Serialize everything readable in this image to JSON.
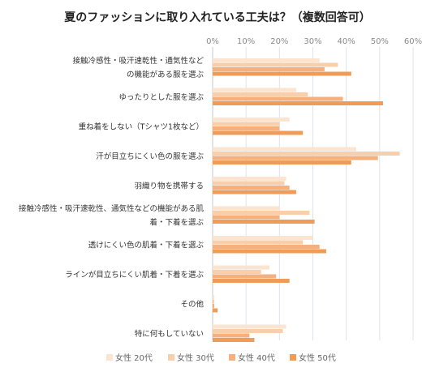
{
  "chart_data": {
    "type": "bar",
    "orientation": "horizontal",
    "title": "夏のファッションに取り入れている工夫は？（複数回答可）",
    "x_ticks": [
      "0%",
      "10%",
      "20%",
      "30%",
      "40%",
      "50%",
      "60%"
    ],
    "xlim": [
      0,
      60
    ],
    "grid": true,
    "legend_position": "bottom",
    "categories": [
      [
        "接触冷感性・吸汗速乾性・通気性など",
        "の機能がある服を選ぶ"
      ],
      [
        "ゆったりとした服を選ぶ"
      ],
      [
        "重ね着をしない（Tシャツ1枚など）"
      ],
      [
        "汗が目立ちにくい色の服を選ぶ"
      ],
      [
        "羽織り物を携帯する"
      ],
      [
        "接触冷感性・吸汗速乾性、通気性などの機能がある肌",
        "着・下着を選ぶ"
      ],
      [
        "透けにくい色の肌着・下着を選ぶ"
      ],
      [
        "ラインが目立ちにくい肌着・下着を選ぶ"
      ],
      [
        "その他"
      ],
      [
        "特に何もしていない"
      ]
    ],
    "series": [
      {
        "name": "女性 20代",
        "color": "#fbe4d0",
        "values": [
          32,
          25,
          23,
          43,
          22,
          20,
          30,
          17,
          0.5,
          22
        ]
      },
      {
        "name": "女性 30代",
        "color": "#f9ceaa",
        "values": [
          37.5,
          28.5,
          20,
          56,
          21.5,
          29,
          27,
          14.5,
          0.5,
          21
        ]
      },
      {
        "name": "女性 40代",
        "color": "#f5b080",
        "values": [
          33.5,
          39,
          20,
          49.5,
          23,
          20,
          32,
          19,
          0.5,
          11
        ]
      },
      {
        "name": "女性 50代",
        "color": "#ef9c58",
        "values": [
          41.5,
          51,
          27,
          41.5,
          25,
          30.5,
          34,
          23,
          1.5,
          12.5
        ]
      }
    ]
  }
}
